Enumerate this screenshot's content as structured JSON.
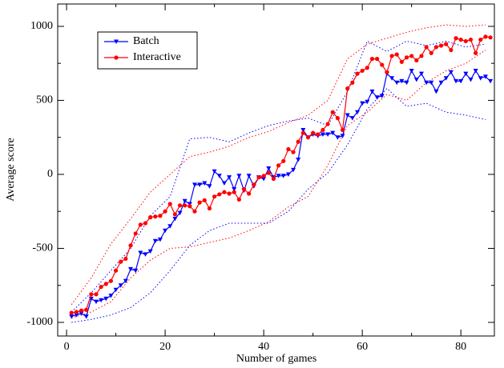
{
  "chart_data": {
    "type": "line",
    "xlabel": "Number of games",
    "ylabel": "Average score",
    "xlim": [
      -1.8,
      86.8
    ],
    "ylim": [
      -1092,
      1151
    ],
    "xticks": [
      0,
      20,
      40,
      60,
      80
    ],
    "yticks": [
      -1000,
      -500,
      0,
      500,
      1000
    ],
    "x": [
      1,
      2,
      3,
      4,
      5,
      6,
      7,
      8,
      9,
      10,
      11,
      12,
      13,
      14,
      15,
      16,
      17,
      18,
      19,
      20,
      21,
      22,
      23,
      24,
      25,
      26,
      27,
      28,
      29,
      30,
      31,
      32,
      33,
      34,
      35,
      36,
      37,
      38,
      39,
      40,
      41,
      42,
      43,
      44,
      45,
      46,
      47,
      48,
      49,
      50,
      51,
      52,
      53,
      54,
      55,
      56,
      57,
      58,
      59,
      60,
      61,
      62,
      63,
      64,
      65,
      66,
      67,
      68,
      69,
      70,
      71,
      72,
      73,
      74,
      75,
      76,
      77,
      78,
      79,
      80,
      81,
      82,
      83,
      84,
      85,
      86
    ],
    "band_x": [
      1,
      5,
      9,
      13,
      17,
      21,
      25,
      29,
      33,
      37,
      41,
      45,
      49,
      53,
      57,
      61,
      65,
      69,
      73,
      77,
      81,
      85
    ],
    "legend": "upper-left",
    "series": [
      {
        "name": "Batch",
        "color": "#0000ff",
        "marker": "triangle-down",
        "values": [
          -960,
          -950,
          -940,
          -960,
          -840,
          -860,
          -850,
          -840,
          -820,
          -780,
          -750,
          -720,
          -640,
          -650,
          -530,
          -540,
          -520,
          -450,
          -440,
          -380,
          -350,
          -300,
          -260,
          -180,
          -200,
          -70,
          -70,
          -60,
          -80,
          20,
          -10,
          -60,
          -20,
          -100,
          -10,
          -110,
          -10,
          -80,
          -20,
          -30,
          40,
          -20,
          -10,
          -10,
          0,
          30,
          100,
          300,
          250,
          270,
          260,
          270,
          270,
          280,
          250,
          260,
          400,
          380,
          420,
          480,
          490,
          560,
          520,
          530,
          680,
          650,
          620,
          630,
          620,
          700,
          640,
          680,
          620,
          620,
          560,
          620,
          650,
          690,
          630,
          630,
          680,
          640,
          700,
          650,
          660,
          630
        ],
        "band_upper": [
          -930,
          -800,
          -650,
          -500,
          -280,
          -150,
          240,
          250,
          220,
          280,
          330,
          360,
          380,
          330,
          560,
          900,
          830,
          900,
          870,
          900,
          860,
          880
        ],
        "band_lower": [
          -1000,
          -980,
          -950,
          -900,
          -800,
          -650,
          -480,
          -380,
          -330,
          -330,
          -330,
          -250,
          -100,
          10,
          200,
          440,
          580,
          460,
          480,
          420,
          400,
          370
        ]
      },
      {
        "name": "Interactive",
        "color": "#ff0000",
        "marker": "circle",
        "values": [
          -935,
          -930,
          -920,
          -915,
          -810,
          -810,
          -760,
          -740,
          -720,
          -650,
          -590,
          -570,
          -480,
          -400,
          -340,
          -330,
          -290,
          -285,
          -280,
          -250,
          -200,
          -270,
          -210,
          -210,
          -215,
          -250,
          -190,
          -175,
          -230,
          -150,
          -135,
          -120,
          -130,
          -120,
          -170,
          -100,
          -130,
          -70,
          -20,
          -10,
          10,
          -30,
          60,
          90,
          170,
          150,
          220,
          280,
          250,
          280,
          270,
          300,
          340,
          420,
          380,
          300,
          580,
          620,
          680,
          700,
          720,
          780,
          780,
          740,
          690,
          800,
          810,
          760,
          790,
          800,
          770,
          800,
          860,
          820,
          860,
          870,
          880,
          840,
          920,
          910,
          900,
          910,
          820,
          910,
          930,
          925
        ],
        "band_upper": [
          -880,
          -700,
          -470,
          -300,
          -120,
          0,
          120,
          150,
          190,
          250,
          290,
          350,
          400,
          500,
          780,
          880,
          920,
          960,
          990,
          1010,
          1000,
          1010
        ],
        "band_lower": [
          -970,
          -930,
          -860,
          -700,
          -580,
          -500,
          -490,
          -460,
          -430,
          -380,
          -320,
          -220,
          -150,
          60,
          330,
          420,
          540,
          500,
          620,
          700,
          750,
          840
        ]
      }
    ]
  }
}
